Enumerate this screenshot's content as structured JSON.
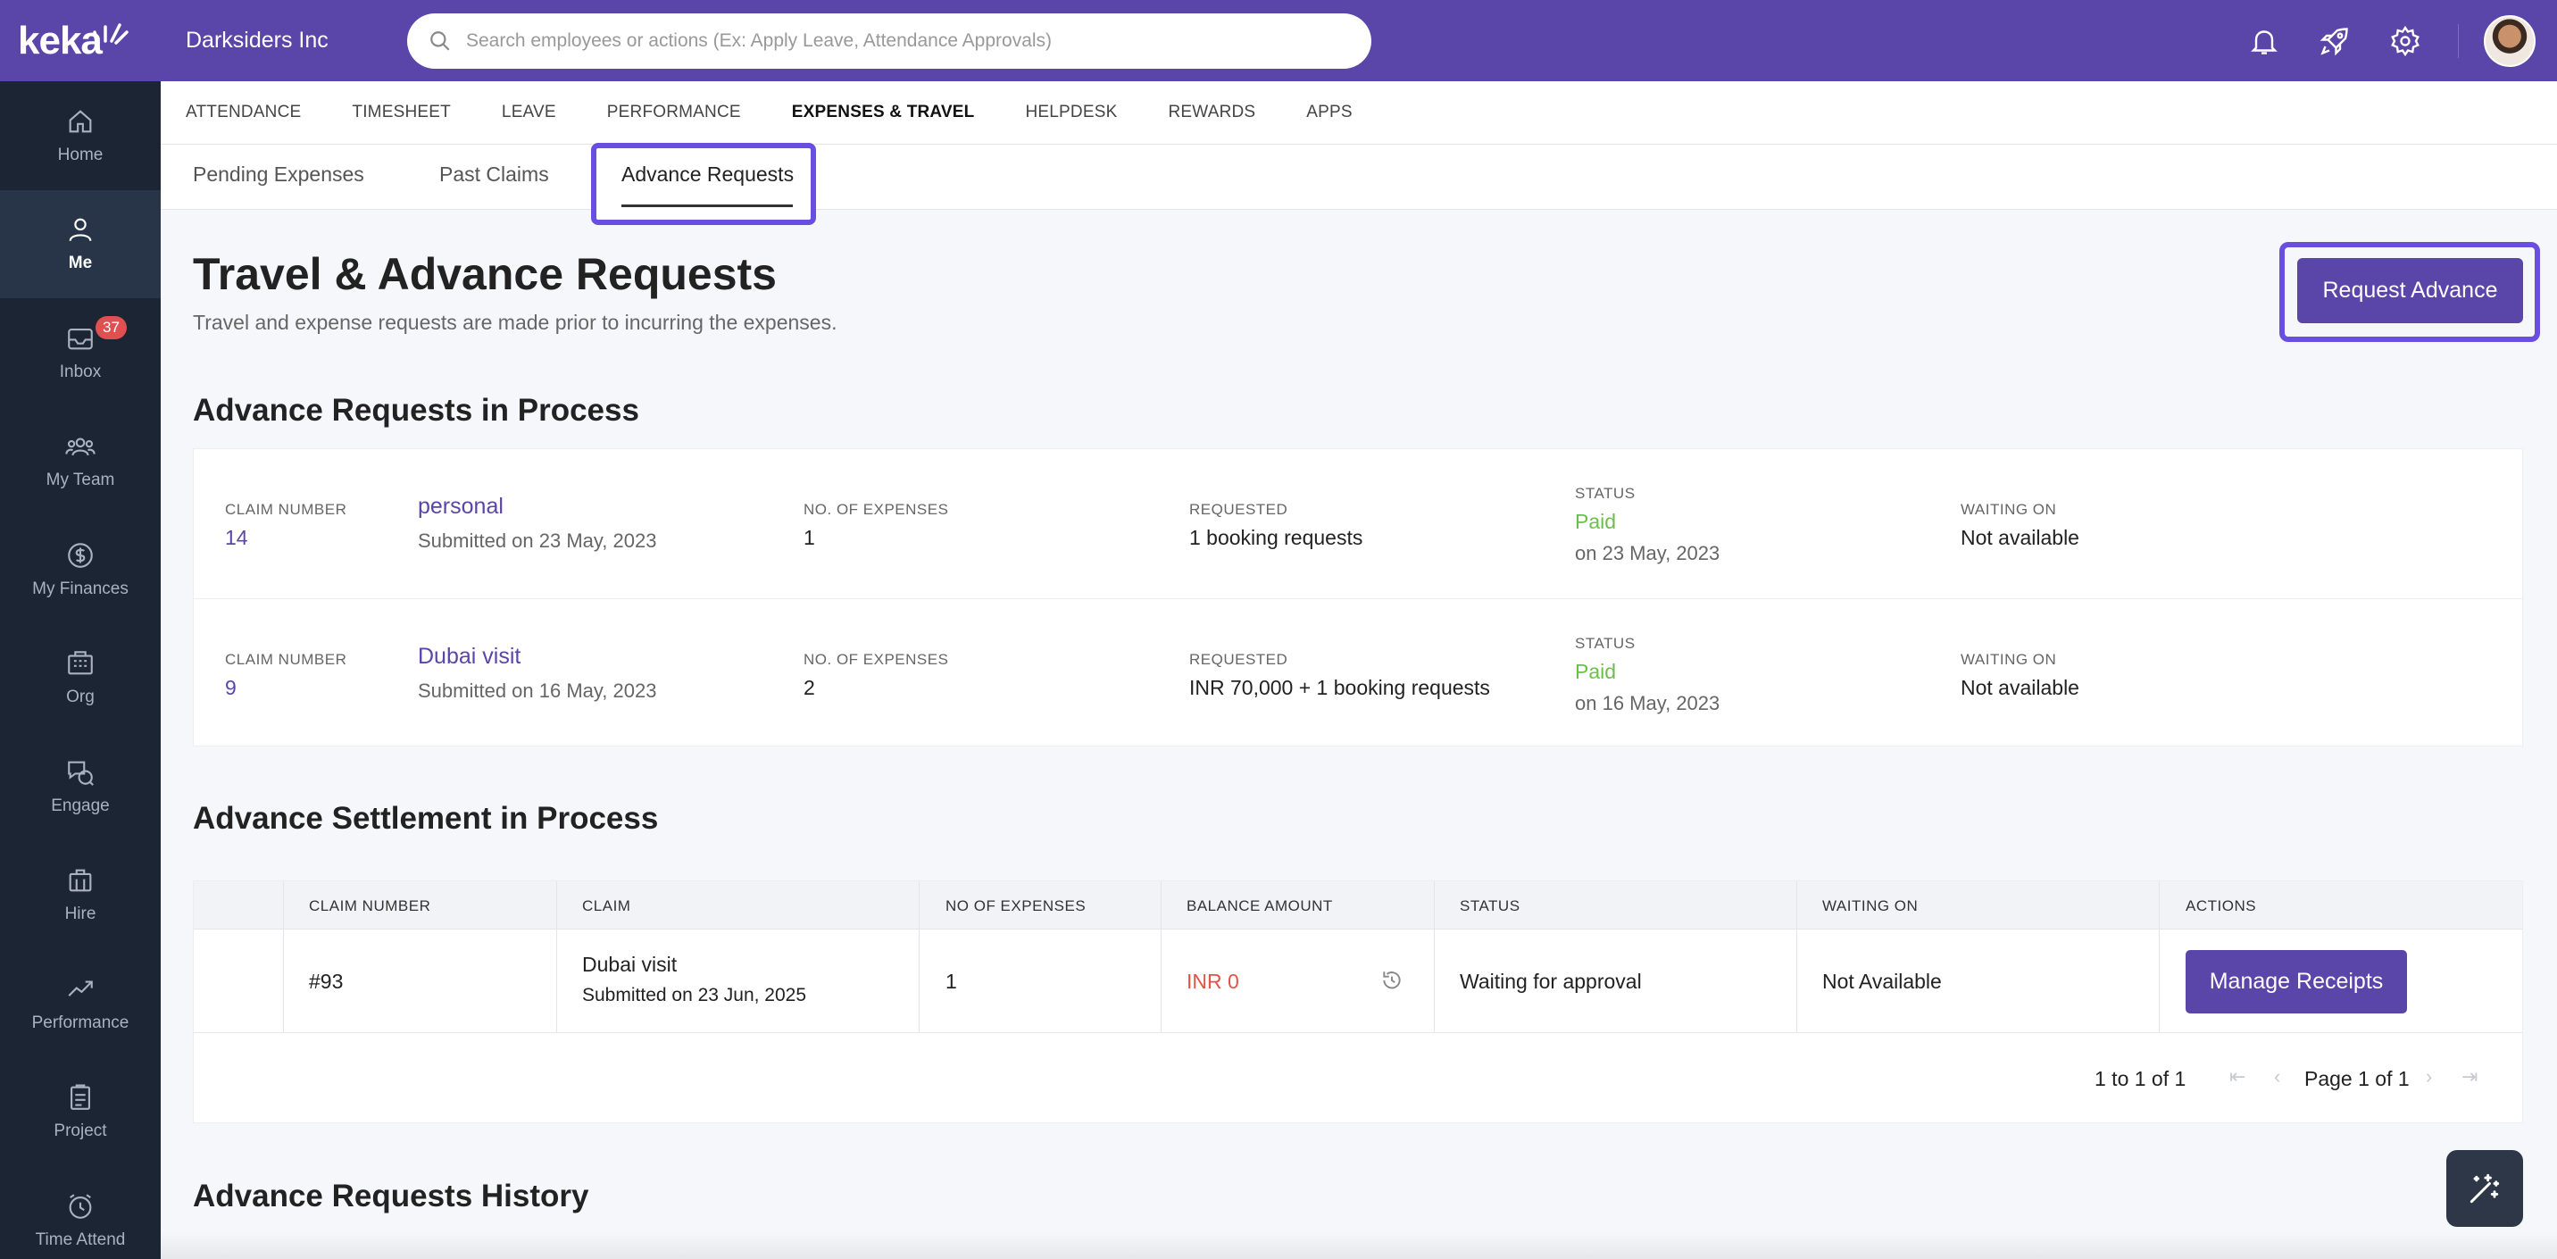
{
  "brand": {
    "logo_text": "keka",
    "company": "Darksiders Inc",
    "accent": "#5a45a8"
  },
  "search": {
    "placeholder": "Search employees or actions (Ex: Apply Leave, Attendance Approvals)"
  },
  "sidebar": {
    "items": [
      {
        "label": "Home",
        "icon": "home-icon"
      },
      {
        "label": "Me",
        "icon": "user-icon",
        "active": true
      },
      {
        "label": "Inbox",
        "icon": "inbox-icon",
        "badge": "37"
      },
      {
        "label": "My Team",
        "icon": "team-icon"
      },
      {
        "label": "My Finances",
        "icon": "finance-icon"
      },
      {
        "label": "Org",
        "icon": "org-icon"
      },
      {
        "label": "Engage",
        "icon": "engage-icon"
      },
      {
        "label": "Hire",
        "icon": "hire-icon"
      },
      {
        "label": "Performance",
        "icon": "performance-icon"
      },
      {
        "label": "Project",
        "icon": "project-icon"
      },
      {
        "label": "Time Attend",
        "icon": "clock-icon"
      }
    ]
  },
  "top_tabs": [
    "ATTENDANCE",
    "TIMESHEET",
    "LEAVE",
    "PERFORMANCE",
    "EXPENSES & TRAVEL",
    "HELPDESK",
    "REWARDS",
    "APPS"
  ],
  "sub_tabs": [
    "Pending Expenses",
    "Past Claims",
    "Advance Requests"
  ],
  "page": {
    "title": "Travel & Advance Requests",
    "description": "Travel and expense requests are made prior to incurring the expenses.",
    "request_button": "Request Advance"
  },
  "in_process": {
    "title": "Advance Requests in Process",
    "labels": {
      "claim_number": "CLAIM NUMBER",
      "expenses": "NO. OF EXPENSES",
      "requested": "REQUESTED",
      "status": "STATUS",
      "waiting": "WAITING ON"
    },
    "rows": [
      {
        "claim_number": "14",
        "name": "personal",
        "submitted": "Submitted on 23 May, 2023",
        "expenses": "1",
        "requested": "1 booking requests",
        "status": "Paid",
        "status_date": "on 23 May, 2023",
        "waiting": "Not available"
      },
      {
        "claim_number": "9",
        "name": "Dubai visit",
        "submitted": "Submitted on 16 May, 2023",
        "expenses": "2",
        "requested": "INR 70,000 + 1 booking requests",
        "status": "Paid",
        "status_date": "on 16 May, 2023",
        "waiting": "Not available"
      }
    ]
  },
  "settlement": {
    "title": "Advance Settlement in Process",
    "headers": {
      "claim_number": "CLAIM NUMBER",
      "claim": "CLAIM",
      "expenses": "NO OF EXPENSES",
      "balance": "BALANCE AMOUNT",
      "status": "STATUS",
      "waiting": "WAITING ON",
      "actions": "ACTIONS"
    },
    "row": {
      "claim_number": "#93",
      "claim": "Dubai visit",
      "submitted": "Submitted on 23 Jun, 2025",
      "expenses": "1",
      "balance": "INR 0",
      "status": "Waiting for approval",
      "waiting": "Not Available",
      "action": "Manage Receipts"
    },
    "pagination": {
      "range": "1 to 1 of 1",
      "page": "Page 1 of 1"
    }
  },
  "history": {
    "title": "Advance Requests History"
  }
}
